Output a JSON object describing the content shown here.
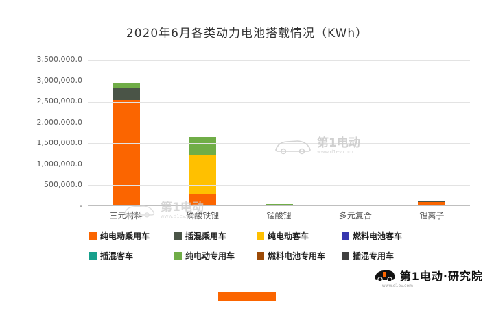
{
  "title": "2020年6月各类动力电池搭载情况（KWh）",
  "chart_data": {
    "type": "bar",
    "stacked": true,
    "title": "2020年6月各类动力电池搭载情况（KWh）",
    "categories": [
      "三元材料",
      "磷酸铁锂",
      "锰酸锂",
      "多元复合",
      "锂离子"
    ],
    "series": [
      {
        "name": "纯电动乘用车",
        "color": "#FB6500",
        "values": [
          2550000,
          280000,
          0,
          18000,
          78000
        ]
      },
      {
        "name": "插混乘用车",
        "color": "#4A5447",
        "values": [
          280000,
          0,
          0,
          0,
          14000
        ]
      },
      {
        "name": "纯电动客车",
        "color": "#FFC000",
        "values": [
          0,
          950000,
          0,
          0,
          0
        ]
      },
      {
        "name": "燃料电池客车",
        "color": "#3636AE",
        "values": [
          0,
          0,
          0,
          0,
          0
        ]
      },
      {
        "name": "插混客车",
        "color": "#17A08C",
        "values": [
          0,
          0,
          12000,
          0,
          0
        ]
      },
      {
        "name": "纯电动专用车",
        "color": "#70AD47",
        "values": [
          120000,
          420000,
          18000,
          0,
          0
        ]
      },
      {
        "name": "燃料电池专用车",
        "color": "#9C4A06",
        "values": [
          0,
          0,
          0,
          0,
          0
        ]
      },
      {
        "name": "插混专用车",
        "color": "#404040",
        "values": [
          0,
          0,
          0,
          0,
          0
        ]
      }
    ],
    "ylim": [
      0,
      3500000
    ],
    "y_ticks": [
      "3,500,000.0",
      "3,000,000.0",
      "2,500,000.0",
      "2,000,000.0",
      "1,500,000.0",
      "1,000,000.0",
      "500,000.0",
      "-"
    ],
    "grid": true,
    "legend_position": "bottom"
  },
  "watermark": {
    "brand": "第1电动",
    "url": "www.d1ev.com"
  },
  "footer": {
    "logo_text": "第1电动·研究院",
    "accent_color": "#FB6500"
  }
}
